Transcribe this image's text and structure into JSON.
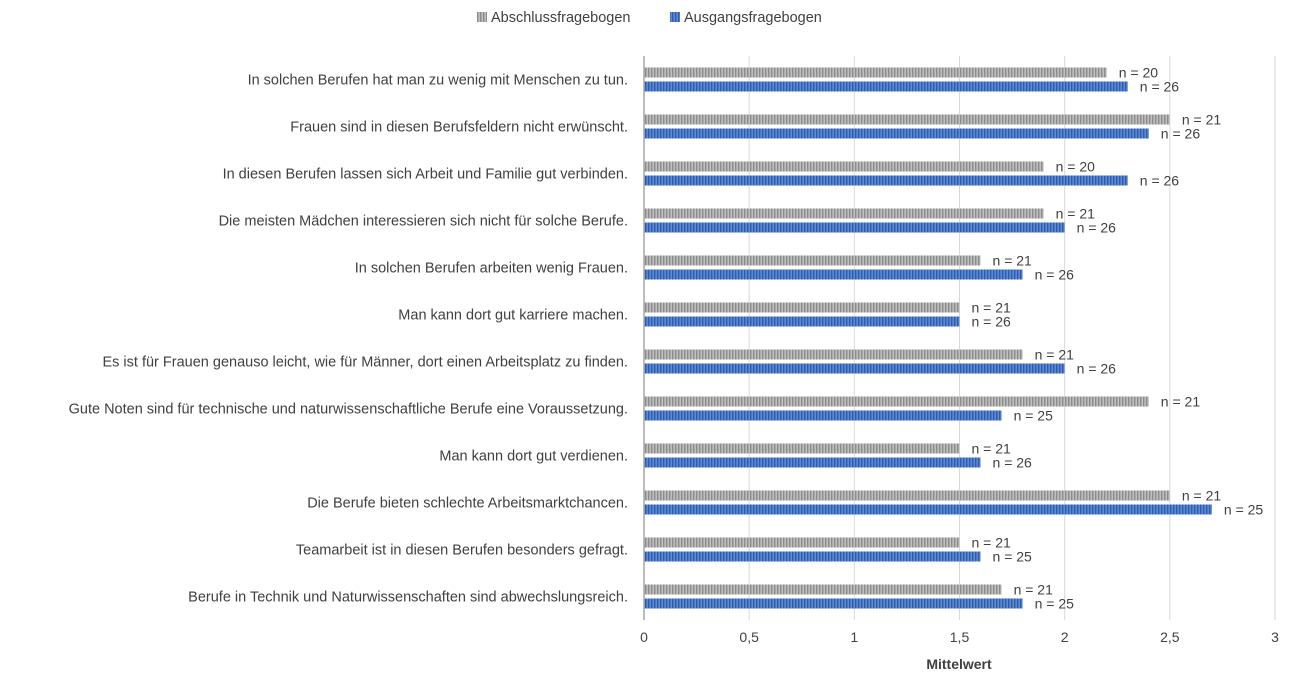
{
  "chart_data": {
    "type": "bar",
    "orientation": "horizontal",
    "xlabel": "Mittelwert",
    "xlim": [
      0,
      3
    ],
    "xticks": [
      {
        "value": 0,
        "label": "0"
      },
      {
        "value": 0.5,
        "label": "0,5"
      },
      {
        "value": 1,
        "label": "1"
      },
      {
        "value": 1.5,
        "label": "1,5"
      },
      {
        "value": 2,
        "label": "2"
      },
      {
        "value": 2.5,
        "label": "2,5"
      },
      {
        "value": 3,
        "label": "3"
      }
    ],
    "grid": true,
    "legend_position": "top",
    "categories": [
      "In solchen Berufen hat man zu wenig mit Menschen zu tun.",
      "Frauen sind in diesen Berufsfeldern nicht erwünscht.",
      "In diesen Berufen lassen sich Arbeit und Familie gut verbinden.",
      "Die meisten Mädchen interessieren sich nicht für solche Berufe.",
      "In solchen Berufen arbeiten wenig Frauen.",
      "Man kann dort gut karriere machen.",
      "Es ist für Frauen genauso leicht, wie für Männer, dort einen Arbeitsplatz zu finden.",
      "Gute Noten sind für technische und naturwissenschaftliche Berufe eine Voraussetzung.",
      "Man kann dort gut verdienen.",
      "Die Berufe bieten schlechte Arbeitsmarktchancen.",
      "Teamarbeit ist in diesen Berufen besonders gefragt.",
      "Berufe in Technik und Naturwissenschaften sind abwechslungsreich."
    ],
    "series": [
      {
        "name": "Abschlussfragebogen",
        "color": "#a6a6a6",
        "values": [
          2.2,
          2.5,
          1.9,
          1.9,
          1.6,
          1.5,
          1.8,
          2.4,
          1.5,
          2.5,
          1.5,
          1.7
        ],
        "labels": [
          "n = 20",
          "n = 21",
          "n = 20",
          "n = 21",
          "n = 21",
          "n = 21",
          "n = 21",
          "n = 21",
          "n = 21",
          "n = 21",
          "n = 21",
          "n = 21"
        ]
      },
      {
        "name": "Ausgangsfragebogen",
        "color": "#4472c4",
        "values": [
          2.3,
          2.4,
          2.3,
          2.0,
          1.8,
          1.5,
          2.0,
          1.7,
          1.6,
          2.7,
          1.6,
          1.8
        ],
        "labels": [
          "n = 26",
          "n = 26",
          "n = 26",
          "n = 26",
          "n = 26",
          "n = 26",
          "n = 26",
          "n = 25",
          "n = 26",
          "n = 25",
          "n = 25",
          "n = 25"
        ]
      }
    ]
  }
}
